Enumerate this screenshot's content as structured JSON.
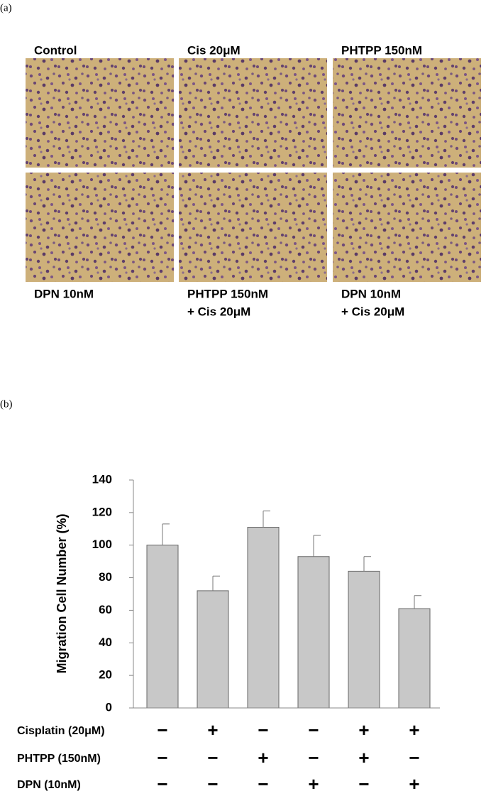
{
  "panel_a": {
    "label": "(a)",
    "images": [
      {
        "lines": [
          "Control"
        ]
      },
      {
        "lines": [
          "Cis 20μM"
        ]
      },
      {
        "lines": [
          "PHTPP 150nM"
        ]
      },
      {
        "lines": [
          "DPN 10nM"
        ]
      },
      {
        "lines": [
          "PHTPP 150nM",
          "+ Cis 20μM"
        ]
      },
      {
        "lines": [
          "DPN 10nM",
          "+ Cis 20μM"
        ]
      }
    ]
  },
  "chart_data": {
    "type": "bar",
    "panel_label": "(b)",
    "ylabel": "Migration Cell Number (%)",
    "categories": [
      null,
      null,
      null,
      null,
      null,
      null
    ],
    "values": [
      100,
      72,
      111,
      93,
      84,
      61
    ],
    "errors": [
      13,
      9,
      10,
      13,
      9,
      8
    ],
    "color": "#c8c8c8",
    "ylim": [
      0,
      140
    ],
    "yticks": [
      0,
      20,
      40,
      60,
      80,
      100,
      120,
      140
    ],
    "conditions": [
      {
        "name": "Cisplatin (20μM)",
        "signs": [
          "−",
          "+",
          "−",
          "−",
          "+",
          "+"
        ]
      },
      {
        "name": "PHTPP (150nM)",
        "signs": [
          "−",
          "−",
          "+",
          "−",
          "+",
          "−"
        ]
      },
      {
        "name": "DPN (10nM)",
        "signs": [
          "−",
          "−",
          "−",
          "+",
          "−",
          "+"
        ]
      }
    ]
  }
}
